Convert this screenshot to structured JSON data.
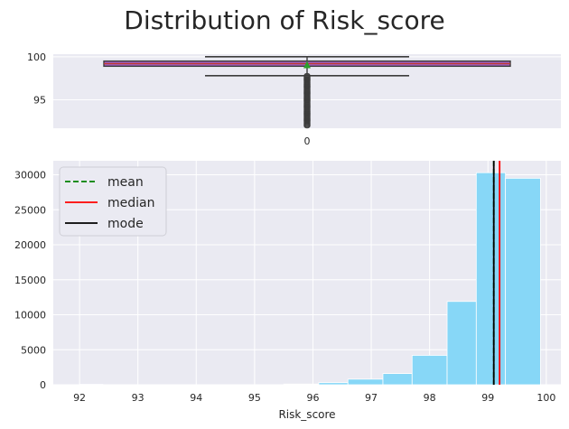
{
  "chart_data": [
    {
      "type": "box",
      "title": "Distribution of Risk_score",
      "xlabel": "",
      "ylabel": "",
      "categories": [
        "0"
      ],
      "ylim": [
        91.7,
        100.3
      ],
      "yticks": [
        95,
        100
      ],
      "box": {
        "whisker_low": 97.8,
        "q1": 98.9,
        "median": 99.2,
        "q3": 99.5,
        "whisker_high": 100,
        "mean": 99.1,
        "outliers_range": [
          92,
          97.8
        ]
      },
      "colors": {
        "box": "#a05fbf",
        "median": "#c0392b",
        "mean_marker": "#2ca02c",
        "outlier": "#3c3c3c"
      }
    },
    {
      "type": "bar",
      "subtype": "histogram",
      "xlabel": "Risk_score",
      "ylabel": "",
      "xlim": [
        91.55,
        100.25
      ],
      "ylim": [
        0,
        32000
      ],
      "xticks": [
        92,
        93,
        94,
        95,
        96,
        97,
        98,
        99,
        100
      ],
      "yticks": [
        0,
        5000,
        10000,
        15000,
        20000,
        25000,
        30000
      ],
      "bins": [
        {
          "x0": 92.0,
          "x1": 92.4,
          "count": 60
        },
        {
          "x0": 95.5,
          "x1": 96.1,
          "count": 100
        },
        {
          "x0": 96.1,
          "x1": 96.6,
          "count": 300
        },
        {
          "x0": 96.6,
          "x1": 97.2,
          "count": 800
        },
        {
          "x0": 97.2,
          "x1": 97.7,
          "count": 1600
        },
        {
          "x0": 97.7,
          "x1": 98.3,
          "count": 4200
        },
        {
          "x0": 98.3,
          "x1": 98.8,
          "count": 11900
        },
        {
          "x0": 98.8,
          "x1": 99.3,
          "count": 30300
        },
        {
          "x0": 99.3,
          "x1": 99.9,
          "count": 29500
        }
      ],
      "lines": [
        {
          "name": "mean",
          "x": 99.1,
          "color": "#008000",
          "style": "dashed"
        },
        {
          "name": "median",
          "x": 99.2,
          "color": "#ff0000",
          "style": "solid"
        },
        {
          "name": "mode",
          "x": 99.1,
          "color": "#000000",
          "style": "solid"
        }
      ],
      "legend": "top-left",
      "grid": true,
      "bar_color": "#87d7f7"
    }
  ]
}
